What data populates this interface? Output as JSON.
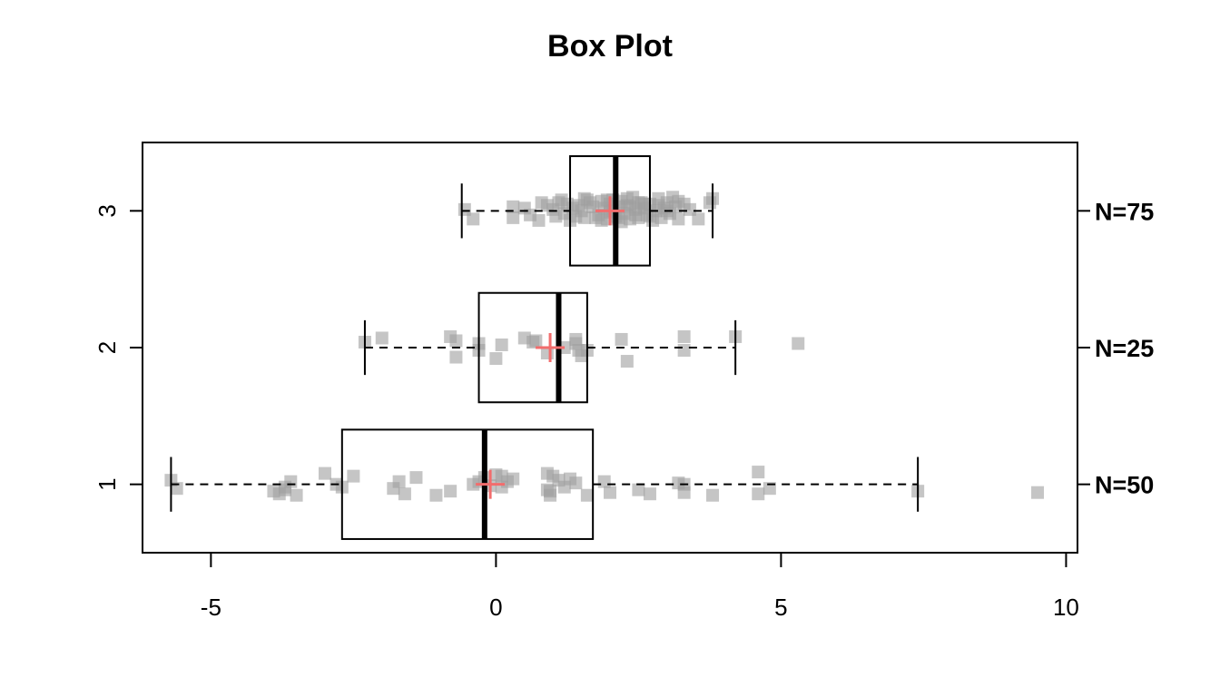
{
  "chart_data": {
    "type": "box",
    "orientation": "horizontal",
    "title": "Box Plot",
    "xlabel": "",
    "ylabel": "",
    "xlim": [
      -6.2,
      10.2
    ],
    "x_ticks": [
      -5,
      0,
      5,
      10
    ],
    "x_tick_labels": [
      "-5",
      "0",
      "5",
      "10"
    ],
    "categories": [
      "1",
      "2",
      "3"
    ],
    "grid": false,
    "colors": {
      "points": "#9e9e9e",
      "mean_marker": "#f26d6d",
      "box": "#000000"
    },
    "groups": [
      {
        "label": "1",
        "n_label": "N=50",
        "whisker_low": -5.7,
        "q1": -2.7,
        "median": -0.2,
        "q3": 1.7,
        "whisker_high": 7.4,
        "mean": -0.1,
        "points": [
          [
            -5.7,
            0.03
          ],
          [
            -5.6,
            -0.03
          ],
          [
            -3.9,
            -0.05
          ],
          [
            -3.8,
            -0.07
          ],
          [
            -3.7,
            -0.04
          ],
          [
            -3.6,
            0.02
          ],
          [
            -3.7,
            -0.02
          ],
          [
            -3.5,
            -0.08
          ],
          [
            -3.0,
            0.08
          ],
          [
            -2.7,
            -0.02
          ],
          [
            -2.5,
            0.06
          ],
          [
            -1.8,
            -0.03
          ],
          [
            -1.7,
            0.02
          ],
          [
            -1.6,
            -0.07
          ],
          [
            -1.4,
            0.05
          ],
          [
            -1.05,
            -0.08
          ],
          [
            -0.8,
            -0.05
          ],
          [
            -0.4,
            0.0
          ],
          [
            -0.2,
            0.05
          ],
          [
            0.0,
            0.07
          ],
          [
            0.1,
            0.06
          ],
          [
            0.2,
            0.02
          ],
          [
            0.1,
            -0.02
          ],
          [
            0.9,
            0.08
          ],
          [
            1.0,
            0.06
          ],
          [
            0.95,
            -0.05
          ],
          [
            1.1,
            0.03
          ],
          [
            1.2,
            -0.02
          ],
          [
            1.4,
            0.01
          ],
          [
            1.6,
            -0.08
          ],
          [
            1.9,
            0.02
          ],
          [
            2.0,
            -0.06
          ],
          [
            2.5,
            -0.04
          ],
          [
            2.7,
            -0.07
          ],
          [
            3.2,
            0.01
          ],
          [
            3.3,
            -0.06
          ],
          [
            3.8,
            -0.08
          ],
          [
            4.6,
            0.09
          ],
          [
            4.6,
            -0.07
          ],
          [
            4.8,
            -0.03
          ],
          [
            7.4,
            -0.05
          ],
          [
            9.5,
            -0.06
          ],
          [
            0.9,
            -0.04
          ],
          [
            -2.8,
            0.0
          ],
          [
            0.3,
            0.04
          ],
          [
            -0.1,
            -0.01
          ],
          [
            1.3,
            0.04
          ],
          [
            0.95,
            -0.08
          ],
          [
            3.3,
            0.0
          ],
          [
            -0.3,
            0.02
          ]
        ]
      },
      {
        "label": "2",
        "n_label": "N=25",
        "whisker_low": -2.3,
        "q1": -0.3,
        "median": 1.1,
        "q3": 1.6,
        "whisker_high": 4.2,
        "mean": 0.95,
        "points": [
          [
            -2.3,
            0.04
          ],
          [
            -2.0,
            0.07
          ],
          [
            -0.8,
            0.08
          ],
          [
            -0.7,
            0.05
          ],
          [
            -0.3,
            0.03
          ],
          [
            0.0,
            -0.08
          ],
          [
            0.1,
            0.02
          ],
          [
            0.5,
            0.07
          ],
          [
            0.7,
            0.05
          ],
          [
            0.9,
            -0.04
          ],
          [
            1.2,
            0.0
          ],
          [
            1.4,
            0.03
          ],
          [
            1.45,
            -0.02
          ],
          [
            1.4,
            0.06
          ],
          [
            1.6,
            -0.02
          ],
          [
            2.2,
            0.06
          ],
          [
            2.3,
            -0.1
          ],
          [
            3.3,
            0.08
          ],
          [
            3.3,
            -0.02
          ],
          [
            4.2,
            0.08
          ],
          [
            5.3,
            0.03
          ],
          [
            -0.7,
            -0.07
          ],
          [
            -0.3,
            -0.02
          ],
          [
            1.5,
            -0.06
          ],
          [
            0.65,
            0.04
          ]
        ]
      },
      {
        "label": "3",
        "n_label": "N=75",
        "whisker_low": -0.6,
        "q1": 1.3,
        "median": 2.1,
        "q3": 2.7,
        "whisker_high": 3.8,
        "mean": 2.0,
        "points": [
          [
            -0.55,
            0.01
          ],
          [
            -0.4,
            -0.06
          ],
          [
            0.3,
            0.03
          ],
          [
            0.3,
            -0.05
          ],
          [
            0.5,
            0.02
          ],
          [
            0.6,
            -0.03
          ],
          [
            0.75,
            -0.07
          ],
          [
            0.9,
            0.04
          ],
          [
            1.0,
            0.01
          ],
          [
            1.1,
            0.06
          ],
          [
            1.2,
            -0.02
          ],
          [
            1.25,
            0.05
          ],
          [
            1.3,
            -0.07
          ],
          [
            1.45,
            0.04
          ],
          [
            1.5,
            0.0
          ],
          [
            1.55,
            -0.05
          ],
          [
            1.65,
            0.06
          ],
          [
            1.7,
            0.03
          ],
          [
            1.8,
            -0.03
          ],
          [
            1.85,
            0.07
          ],
          [
            1.9,
            0.02
          ],
          [
            1.95,
            -0.06
          ],
          [
            2.0,
            0.05
          ],
          [
            2.05,
            0.0
          ],
          [
            2.1,
            -0.04
          ],
          [
            2.15,
            0.03
          ],
          [
            2.2,
            0.07
          ],
          [
            2.25,
            -0.02
          ],
          [
            2.3,
            0.04
          ],
          [
            2.35,
            -0.06
          ],
          [
            2.4,
            0.1
          ],
          [
            2.45,
            0.01
          ],
          [
            2.5,
            -0.05
          ],
          [
            2.55,
            0.06
          ],
          [
            2.6,
            0.02
          ],
          [
            2.65,
            -0.03
          ],
          [
            2.7,
            0.05
          ],
          [
            2.75,
            -0.07
          ],
          [
            2.8,
            0.0
          ],
          [
            2.85,
            0.04
          ],
          [
            2.9,
            -0.05
          ],
          [
            2.95,
            0.02
          ],
          [
            3.0,
            0.06
          ],
          [
            3.05,
            -0.02
          ],
          [
            3.1,
            0.1
          ],
          [
            3.15,
            0.03
          ],
          [
            3.2,
            -0.06
          ],
          [
            3.3,
            0.05
          ],
          [
            3.4,
            0.01
          ],
          [
            3.55,
            -0.06
          ],
          [
            3.75,
            0.06
          ],
          [
            3.8,
            0.09
          ],
          [
            1.75,
            -0.05
          ],
          [
            2.05,
            0.08
          ],
          [
            2.35,
            0.03
          ],
          [
            1.6,
            0.08
          ],
          [
            1.35,
            0.02
          ],
          [
            2.85,
            0.09
          ],
          [
            2.2,
            -0.08
          ],
          [
            1.95,
            0.08
          ],
          [
            2.5,
            0.06
          ],
          [
            3.0,
            0.0
          ],
          [
            1.15,
            0.08
          ],
          [
            2.7,
            -0.04
          ],
          [
            1.4,
            -0.04
          ],
          [
            2.6,
            0.05
          ],
          [
            2.0,
            -0.01
          ],
          [
            1.85,
            -0.07
          ],
          [
            2.3,
            0.09
          ],
          [
            1.05,
            -0.04
          ],
          [
            3.2,
            0.07
          ],
          [
            2.15,
            -0.05
          ],
          [
            0.8,
            0.06
          ],
          [
            2.45,
            -0.03
          ],
          [
            1.55,
            0.09
          ]
        ]
      }
    ]
  }
}
